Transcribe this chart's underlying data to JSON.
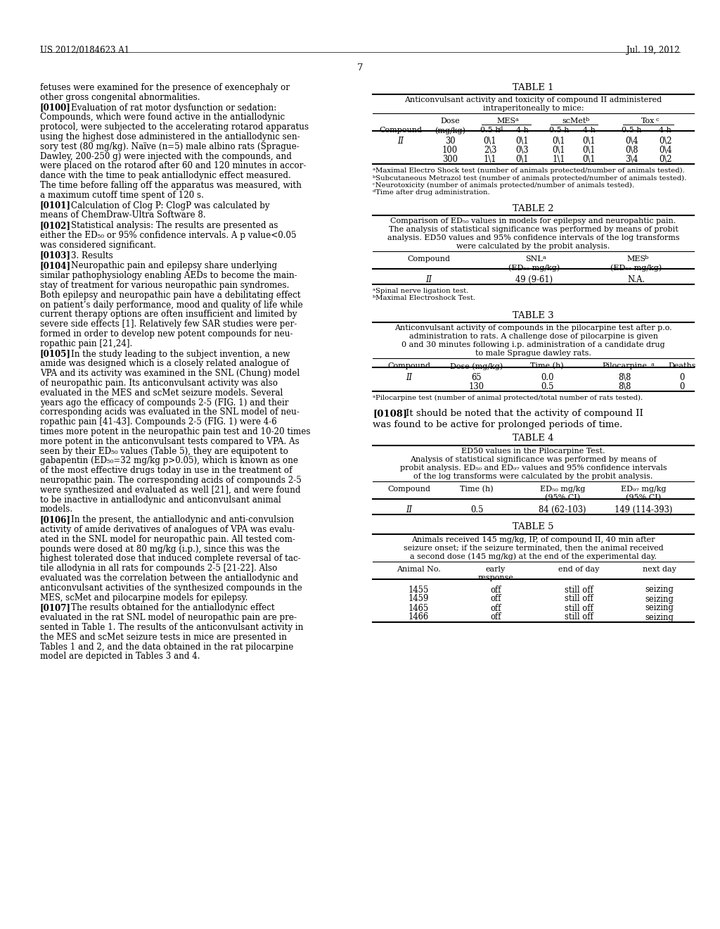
{
  "bg_color": "#ffffff",
  "header_left": "US 2012/0184623 A1",
  "header_right": "Jul. 19, 2012",
  "page_number": "7",
  "left_text_blocks": [
    {
      "tag": "",
      "text": "fetuses were examined for the presence of exencephaly or\nother gross congenital abnormalities."
    },
    {
      "tag": "[0100]",
      "text": "Evaluation of rat motor dysfunction or sedation:\nCompounds, which were found active in the antiallodynic\nprotocol, were subjected to the accelerating rotarod apparatus\nusing the highest dose administered in the antiallodynic sen-\nsory test (80 mg/kg). Naïve (n=5) male albino rats (Sprague-\nDawley, 200-250 g) were injected with the compounds, and\nwere placed on the rotarod after 60 and 120 minutes in accor-\ndance with the time to peak antiallodynic effect measured.\nThe time before falling off the apparatus was measured, with\na maximum cutoff time spent of 120 s."
    },
    {
      "tag": "[0101]",
      "text": "Calculation of Clog P: ClogP was calculated by\nmeans of ChemDraw-Ultra Software 8."
    },
    {
      "tag": "[0102]",
      "text": "Statistical analysis: The results are presented as\neither the ED₅₀ or 95% confidence intervals. A p value<0.05\nwas considered significant."
    },
    {
      "tag": "[0103]",
      "text": "3. Results"
    },
    {
      "tag": "[0104]",
      "text": "Neuropathic pain and epilepsy share underlying\nsimilar pathophysiology enabling AEDs to become the main-\nstay of treatment for various neuropathic pain syndromes.\nBoth epilepsy and neuropathic pain have a debilitating effect\non patient’s daily performance, mood and quality of life while\ncurrent therapy options are often insufficient and limited by\nsevere side effects [1]. Relatively few SAR studies were per-\nformed in order to develop new potent compounds for neu-\nropathic pain [21,24]."
    },
    {
      "tag": "[0105]",
      "text": "In the study leading to the subject invention, a new\namide was designed which is a closely related analogue of\nVPA and its activity was examined in the SNL (Chung) model\nof neuropathic pain. Its anticonvulsant activity was also\nevaluated in the MES and scMet seizure models. Several\nyears ago the efficacy of compounds 2-5 (FIG. 1) and their\ncorresponding acids was evaluated in the SNL model of neu-\nropathic pain [41-43]. Compounds 2-5 (FIG. 1) were 4-6\ntimes more potent in the neuropathic pain test and 10-20 times\nmore potent in the anticonvulsant tests compared to VPA. As\nseen by their ED₅₀ values (Table 5), they are equipotent to\ngabapentin (ED₅₀=32 mg/kg p>0.05), which is known as one\nof the most effective drugs today in use in the treatment of\nneuropathic pain. The corresponding acids of compounds 2-5\nwere synthesized and evaluated as well [21], and were found\nto be inactive in antiallodynic and anticonvulsant animal\nmodels."
    },
    {
      "tag": "[0106]",
      "text": "In the present, the antiallodynic and anti-convulsion\nactivity of amide derivatives of analogues of VPA was evalu-\nated in the SNL model for neuropathic pain. All tested com-\npounds were dosed at 80 mg/kg (i.p.), since this was the\nhighest tolerated dose that induced complete reversal of tac-\ntile allodynia in all rats for compounds 2-5 [21-22]. Also\nevaluated was the correlation between the antiallodynic and\nanticonvulsant activities of the synthesized compounds in the\nMES, scMet and pilocarpine models for epilepsy."
    },
    {
      "tag": "[0107]",
      "text": "The results obtained for the antiallodynic effect\nevaluated in the rat SNL model of neuropathic pain are pre-\nsented in Table 1. The results of the anticonvulsant activity in\nthe MES and scMet seizure tests in mice are presented in\nTables 1 and 2, and the data obtained in the rat pilocarpine\nmodel are depicted in Tables 3 and 4."
    }
  ],
  "table1_title": "TABLE 1",
  "table1_caption": "Anticonvulsant activity and toxicity of compound II administered\nintraperitoneally to mice:",
  "table1_data": [
    [
      "II",
      "30",
      "0\\1",
      "0\\1",
      "0\\1",
      "0\\1",
      "0\\4",
      "0\\2"
    ],
    [
      "",
      "100",
      "2\\3",
      "0\\3",
      "0\\1",
      "0\\1",
      "0\\8",
      "0\\4"
    ],
    [
      "",
      "300",
      "1\\1",
      "0\\1",
      "1\\1",
      "0\\1",
      "3\\4",
      "0\\2"
    ]
  ],
  "table1_footnotes": [
    "ᵃMaximal Electro Shock test (number of animals protected/number of animals tested).",
    "ᵇSubcutaneous Metrazol test (number of animals protected/number of animals tested).",
    "ᶜNeurotoxicity (number of animals protected/number of animals tested).",
    "ᵈTime after drug administration."
  ],
  "table2_title": "TABLE 2",
  "table2_caption": "Comparison of ED₅₀ values in models for epilepsy and neuropahtic pain.\nThe analysis of statistical significance was performed by means of probit\nanalysis. ED50 values and 95% confidence intervals of the log transforms\nwere calculated by the probit analysis.",
  "table2_data": [
    [
      "II",
      "49 (9-61)",
      "N.A."
    ]
  ],
  "table2_footnotes": [
    "ᵃSpinal nerve ligation test.",
    "ᵇMaximal Electroshock Test."
  ],
  "table3_title": "TABLE 3",
  "table3_caption": "Anticonvulsant activity of compounds in the pilocarpine test after p.o.\nadministration to rats. A challenge dose of pilocarpine is given\n0 and 30 minutes following i.p. administration of a candidate drug\nto male Sprague dawley rats.",
  "table3_data": [
    [
      "II",
      "65",
      "0.0",
      "8\\8",
      "0"
    ],
    [
      "",
      "130",
      "0.5",
      "8\\8",
      "0"
    ]
  ],
  "table3_footnotes": [
    "ᵃPilocarpine test (number of animal protected/total number of rats tested)."
  ],
  "para_0108_tag": "[0108]",
  "para_0108_text": "It should be noted that the activity of compound II\nwas found to be active for prolonged periods of time.",
  "table4_title": "TABLE 4",
  "table4_caption": "ED50 values in the Pilocarpine Test.\nAnalysis of statistical significance was performed by means of\nprobit analysis. ED₅₀ and ED₉₇ values and 95% confidence intervals\nof the log transforms were calculated by the probit analysis.",
  "table4_data": [
    [
      "II",
      "0.5",
      "84 (62-103)",
      "149 (114-393)"
    ]
  ],
  "table5_title": "TABLE 5",
  "table5_caption": "Animals received 145 mg/kg, IP, of compound II, 40 min after\nseizure onset; if the seizure terminated, then the animal received\na second dose (145 mg/kg) at the end of the experimental day.",
  "table5_data": [
    [
      "1455",
      "off",
      "still off",
      "seizing"
    ],
    [
      "1459",
      "off",
      "still off",
      "seizing"
    ],
    [
      "1465",
      "off",
      "still off",
      "seizing"
    ],
    [
      "1466",
      "off",
      "still off",
      "seizing"
    ]
  ]
}
